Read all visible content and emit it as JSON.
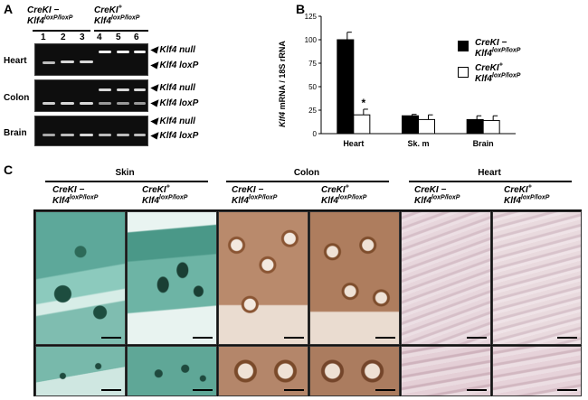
{
  "panels": {
    "a": "A",
    "b": "B",
    "c": "C"
  },
  "geno": {
    "minus": {
      "cre": "CreKI",
      "sign": "−",
      "klf": "Klf4",
      "sup": "loxP/loxP"
    },
    "plus": {
      "cre": "CreKI",
      "sign": "+",
      "klf": "Klf4",
      "sup": "loxP/loxP"
    }
  },
  "gel": {
    "lanes": [
      "1",
      "2",
      "3",
      "4",
      "5",
      "6"
    ],
    "rows": [
      "Heart",
      "Colon",
      "Brain"
    ],
    "band_null": "Klf4 null",
    "band_loxp": "Klf4 loxP"
  },
  "chart_data": {
    "type": "bar",
    "title": "",
    "ylabel_gene": "Klf4",
    "ylabel_rest": " mRNA / 18S rRNA",
    "categories": [
      "Heart",
      "Sk. m",
      "Brain"
    ],
    "yticks": [
      "0",
      "25",
      "50",
      "75",
      "100",
      "125"
    ],
    "ylim": [
      0,
      125
    ],
    "series": [
      {
        "name": "CreKI − Klf4 loxP/loxP",
        "values": [
          100,
          19,
          15
        ],
        "errors": [
          8,
          1.5,
          4
        ],
        "color": "#000000"
      },
      {
        "name": "CreKI + Klf4 loxP/loxP",
        "values": [
          20,
          15,
          14
        ],
        "errors": [
          6,
          5,
          5
        ],
        "color": "#ffffff"
      }
    ],
    "annotation": "*"
  },
  "tissues": {
    "skin": "Skin",
    "colon": "Colon",
    "heart": "Heart"
  }
}
